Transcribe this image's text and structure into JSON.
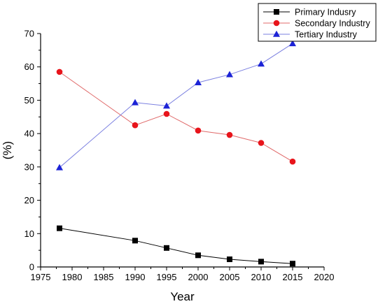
{
  "chart_data": {
    "type": "line",
    "title": "",
    "xlabel": "Year",
    "ylabel": "(%)",
    "xlim": [
      1975,
      2020
    ],
    "ylim": [
      0,
      70
    ],
    "xticks": [
      1975,
      1980,
      1985,
      1990,
      1995,
      2000,
      2005,
      2010,
      2015,
      2020
    ],
    "yticks": [
      0,
      10,
      20,
      30,
      40,
      50,
      60,
      70
    ],
    "grid": false,
    "legend_position": "top-right",
    "series": [
      {
        "name": "Primary Indusry",
        "marker": "square",
        "color": "#000000",
        "line_color": "#000000",
        "x": [
          1978,
          1990,
          1995,
          2000,
          2005,
          2010,
          2015
        ],
        "values": [
          11.6,
          7.9,
          5.7,
          3.5,
          2.3,
          1.6,
          1.0
        ]
      },
      {
        "name": "Secondary Industry",
        "marker": "circle",
        "color": "#e8141b",
        "line_color": "#e06a6a",
        "x": [
          1978,
          1990,
          1995,
          2000,
          2005,
          2010,
          2015
        ],
        "values": [
          58.5,
          42.5,
          45.9,
          40.9,
          39.6,
          37.2,
          31.6
        ]
      },
      {
        "name": "Tertiary Industry",
        "marker": "triangle",
        "color": "#1c23d6",
        "line_color": "#7a7fe0",
        "x": [
          1978,
          1990,
          1995,
          2000,
          2005,
          2010,
          2015
        ],
        "values": [
          29.8,
          49.3,
          48.3,
          55.3,
          57.7,
          60.9,
          67.0
        ]
      }
    ]
  }
}
